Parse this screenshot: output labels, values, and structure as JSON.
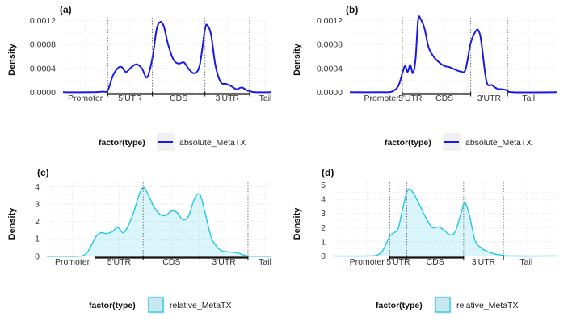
{
  "chart_data": [
    {
      "panel_label": "(a)",
      "type": "line",
      "ylabel": "Density",
      "ylim": [
        -5e-05,
        0.00125
      ],
      "xlim": [
        0,
        3.95
      ],
      "y_ticks": [
        "0.0000",
        "0.0004",
        "0.0008",
        "0.0012"
      ],
      "y_tick_values": [
        0,
        0.0004,
        0.0008,
        0.0012
      ],
      "regions": [
        {
          "label": "Promoter",
          "start": 0,
          "end": 0.85,
          "tick": 0.425
        },
        {
          "label": "5'UTR",
          "start": 0.85,
          "end": 1.7,
          "tick": 1.275
        },
        {
          "label": "CDS",
          "start": 1.7,
          "end": 2.7,
          "tick": 2.2
        },
        {
          "label": "3'UTR",
          "start": 2.7,
          "end": 3.55,
          "tick": 3.125
        },
        {
          "label": "Tail",
          "start": 3.55,
          "end": 3.95,
          "tick": 3.85
        }
      ],
      "boundaries": [
        0.85,
        1.7,
        2.7,
        3.55
      ],
      "gene_bar": [
        0.85,
        3.55
      ],
      "grid": true,
      "legend": {
        "title": "factor(type)",
        "entries": [
          "absolute_MetaTX"
        ],
        "position": "bottom"
      },
      "series": [
        {
          "name": "absolute_MetaTX",
          "color": "#1a1ae6",
          "fill": false,
          "x": [
            0,
            0.5,
            0.75,
            0.85,
            0.95,
            1.05,
            1.12,
            1.2,
            1.3,
            1.4,
            1.5,
            1.6,
            1.7,
            1.78,
            1.85,
            1.92,
            2.0,
            2.1,
            2.2,
            2.3,
            2.4,
            2.5,
            2.6,
            2.7,
            2.75,
            2.82,
            2.9,
            3.0,
            3.1,
            3.2,
            3.3,
            3.4,
            3.5,
            3.55,
            3.65,
            3.95
          ],
          "y": [
            0,
            0,
            1e-05,
            3e-05,
            0.00028,
            0.00041,
            0.00042,
            0.00034,
            0.00042,
            0.00047,
            0.0004,
            0.00025,
            0.00057,
            0.00105,
            0.00118,
            0.0011,
            0.0008,
            0.00055,
            0.00048,
            0.0005,
            0.00038,
            0.00032,
            0.00045,
            0.00105,
            0.00112,
            0.00095,
            0.00045,
            0.00017,
            0.00014,
            0.0001,
            5e-05,
            8e-05,
            3e-05,
            2e-05,
            0,
            0
          ]
        }
      ]
    },
    {
      "panel_label": "(b)",
      "type": "line",
      "ylabel": "Density",
      "ylim": [
        -5e-05,
        0.00125
      ],
      "xlim": [
        0,
        3.95
      ],
      "y_ticks": [
        "0.0000",
        "0.0004",
        "0.0008",
        "0.0012"
      ],
      "y_tick_values": [
        0,
        0.0004,
        0.0008,
        0.0012
      ],
      "regions": [
        {
          "label": "Promoter",
          "start": 0,
          "end": 1.0,
          "tick": 0.6
        },
        {
          "label": "5'UTR",
          "start": 1.0,
          "end": 1.3,
          "tick": 1.15
        },
        {
          "label": "CDS",
          "start": 1.3,
          "end": 2.3,
          "tick": 1.8
        },
        {
          "label": "3'UTR",
          "start": 2.3,
          "end": 3.0,
          "tick": 2.65
        },
        {
          "label": "Tail",
          "start": 3.0,
          "end": 3.95,
          "tick": 3.4
        }
      ],
      "boundaries": [
        1.0,
        1.3,
        2.3,
        3.0
      ],
      "gene_bar": [
        1.0,
        2.3
      ],
      "grid": true,
      "legend": {
        "title": "factor(type)",
        "entries": [
          "absolute_MetaTX"
        ],
        "position": "bottom"
      },
      "series": [
        {
          "name": "absolute_MetaTX",
          "color": "#1a1ae6",
          "fill": false,
          "x": [
            0,
            0.6,
            0.8,
            0.92,
            1.0,
            1.05,
            1.1,
            1.15,
            1.2,
            1.25,
            1.3,
            1.35,
            1.42,
            1.5,
            1.6,
            1.7,
            1.8,
            1.9,
            2.0,
            2.1,
            2.2,
            2.3,
            2.4,
            2.45,
            2.5,
            2.6,
            2.7,
            2.8,
            2.9,
            3.0,
            3.1,
            3.95
          ],
          "y": [
            0,
            0,
            1e-05,
            0.0001,
            0.00032,
            0.00044,
            0.00034,
            0.00046,
            0.00032,
            0.00055,
            0.00122,
            0.00122,
            0.00107,
            0.00075,
            0.00059,
            0.0005,
            0.00044,
            0.00042,
            0.00038,
            0.00035,
            0.00038,
            0.00083,
            0.00103,
            0.00103,
            0.00085,
            0.00018,
            0.00012,
            6e-05,
            5e-05,
            3e-05,
            0,
            0
          ]
        }
      ]
    },
    {
      "panel_label": "(c)",
      "type": "area",
      "ylabel": "Density",
      "ylim": [
        -0.15,
        4.25
      ],
      "xlim": [
        0,
        3.95
      ],
      "y_ticks": [
        "0",
        "1",
        "2",
        "3",
        "4"
      ],
      "y_tick_values": [
        0,
        1,
        2,
        3,
        4
      ],
      "regions": [
        {
          "label": "Promoter",
          "start": 0,
          "end": 0.85,
          "tick": 0.45
        },
        {
          "label": "5'UTR",
          "start": 0.85,
          "end": 1.7,
          "tick": 1.275
        },
        {
          "label": "CDS",
          "start": 1.7,
          "end": 2.7,
          "tick": 2.2
        },
        {
          "label": "3'UTR",
          "start": 2.7,
          "end": 3.55,
          "tick": 3.125
        },
        {
          "label": "Tail",
          "start": 3.55,
          "end": 3.95,
          "tick": 3.85
        }
      ],
      "boundaries": [
        0.85,
        1.7,
        2.7,
        3.55
      ],
      "gene_bar": [
        0.85,
        3.55
      ],
      "grid": true,
      "legend": {
        "title": "factor(type)",
        "entries": [
          "relative_MetaTX"
        ],
        "position": "bottom"
      },
      "series": [
        {
          "name": "relative_MetaTX",
          "color": "#1ec8e6",
          "fill": true,
          "x": [
            0,
            0.5,
            0.65,
            0.75,
            0.85,
            0.95,
            1.05,
            1.15,
            1.25,
            1.35,
            1.45,
            1.55,
            1.62,
            1.7,
            1.78,
            1.88,
            2.0,
            2.1,
            2.2,
            2.3,
            2.4,
            2.5,
            2.6,
            2.7,
            2.8,
            2.9,
            3.0,
            3.1,
            3.2,
            3.35,
            3.5,
            3.6,
            3.95
          ],
          "y": [
            0,
            0,
            0.05,
            0.4,
            1.05,
            1.35,
            1.3,
            1.4,
            1.65,
            1.35,
            1.85,
            2.7,
            3.45,
            3.95,
            3.6,
            2.9,
            2.4,
            2.35,
            2.6,
            2.5,
            2.1,
            2.3,
            3.25,
            3.55,
            2.4,
            1.1,
            0.55,
            0.3,
            0.25,
            0.2,
            0.05,
            0,
            0
          ]
        }
      ]
    },
    {
      "panel_label": "(d)",
      "type": "area",
      "ylabel": "Density",
      "ylim": [
        -0.2,
        5.2
      ],
      "xlim": [
        0,
        3.95
      ],
      "y_ticks": [
        "0",
        "1",
        "2",
        "3",
        "4",
        "5"
      ],
      "y_tick_values": [
        0,
        1,
        2,
        3,
        4,
        5
      ],
      "regions": [
        {
          "label": "Promoter",
          "start": 0,
          "end": 1.0,
          "tick": 0.6
        },
        {
          "label": "5'UTR",
          "start": 1.0,
          "end": 1.3,
          "tick": 1.15
        },
        {
          "label": "CDS",
          "start": 1.3,
          "end": 2.3,
          "tick": 1.8
        },
        {
          "label": "3'UTR",
          "start": 2.3,
          "end": 3.0,
          "tick": 2.65
        },
        {
          "label": "Tail",
          "start": 3.0,
          "end": 3.95,
          "tick": 3.4
        }
      ],
      "boundaries": [
        1.0,
        1.3,
        2.3,
        3.0
      ],
      "gene_bar": [
        1.0,
        2.3
      ],
      "grid": true,
      "legend": {
        "title": "factor(type)",
        "entries": [
          "relative_MetaTX"
        ],
        "position": "bottom"
      },
      "series": [
        {
          "name": "relative_MetaTX",
          "color": "#1ec8e6",
          "fill": true,
          "x": [
            0,
            0.6,
            0.8,
            0.9,
            1.0,
            1.08,
            1.15,
            1.22,
            1.3,
            1.36,
            1.45,
            1.55,
            1.65,
            1.75,
            1.85,
            1.95,
            2.05,
            2.15,
            2.25,
            2.32,
            2.4,
            2.5,
            2.6,
            2.7,
            2.8,
            2.9,
            3.0,
            3.1,
            3.95
          ],
          "y": [
            0,
            0,
            0.1,
            0.55,
            1.4,
            1.65,
            1.95,
            3.2,
            4.5,
            4.7,
            4.2,
            3.4,
            2.6,
            2.0,
            2.05,
            1.85,
            1.5,
            1.7,
            2.95,
            3.75,
            2.9,
            1.1,
            0.6,
            0.35,
            0.2,
            0.1,
            0.05,
            0,
            0
          ]
        }
      ]
    }
  ]
}
